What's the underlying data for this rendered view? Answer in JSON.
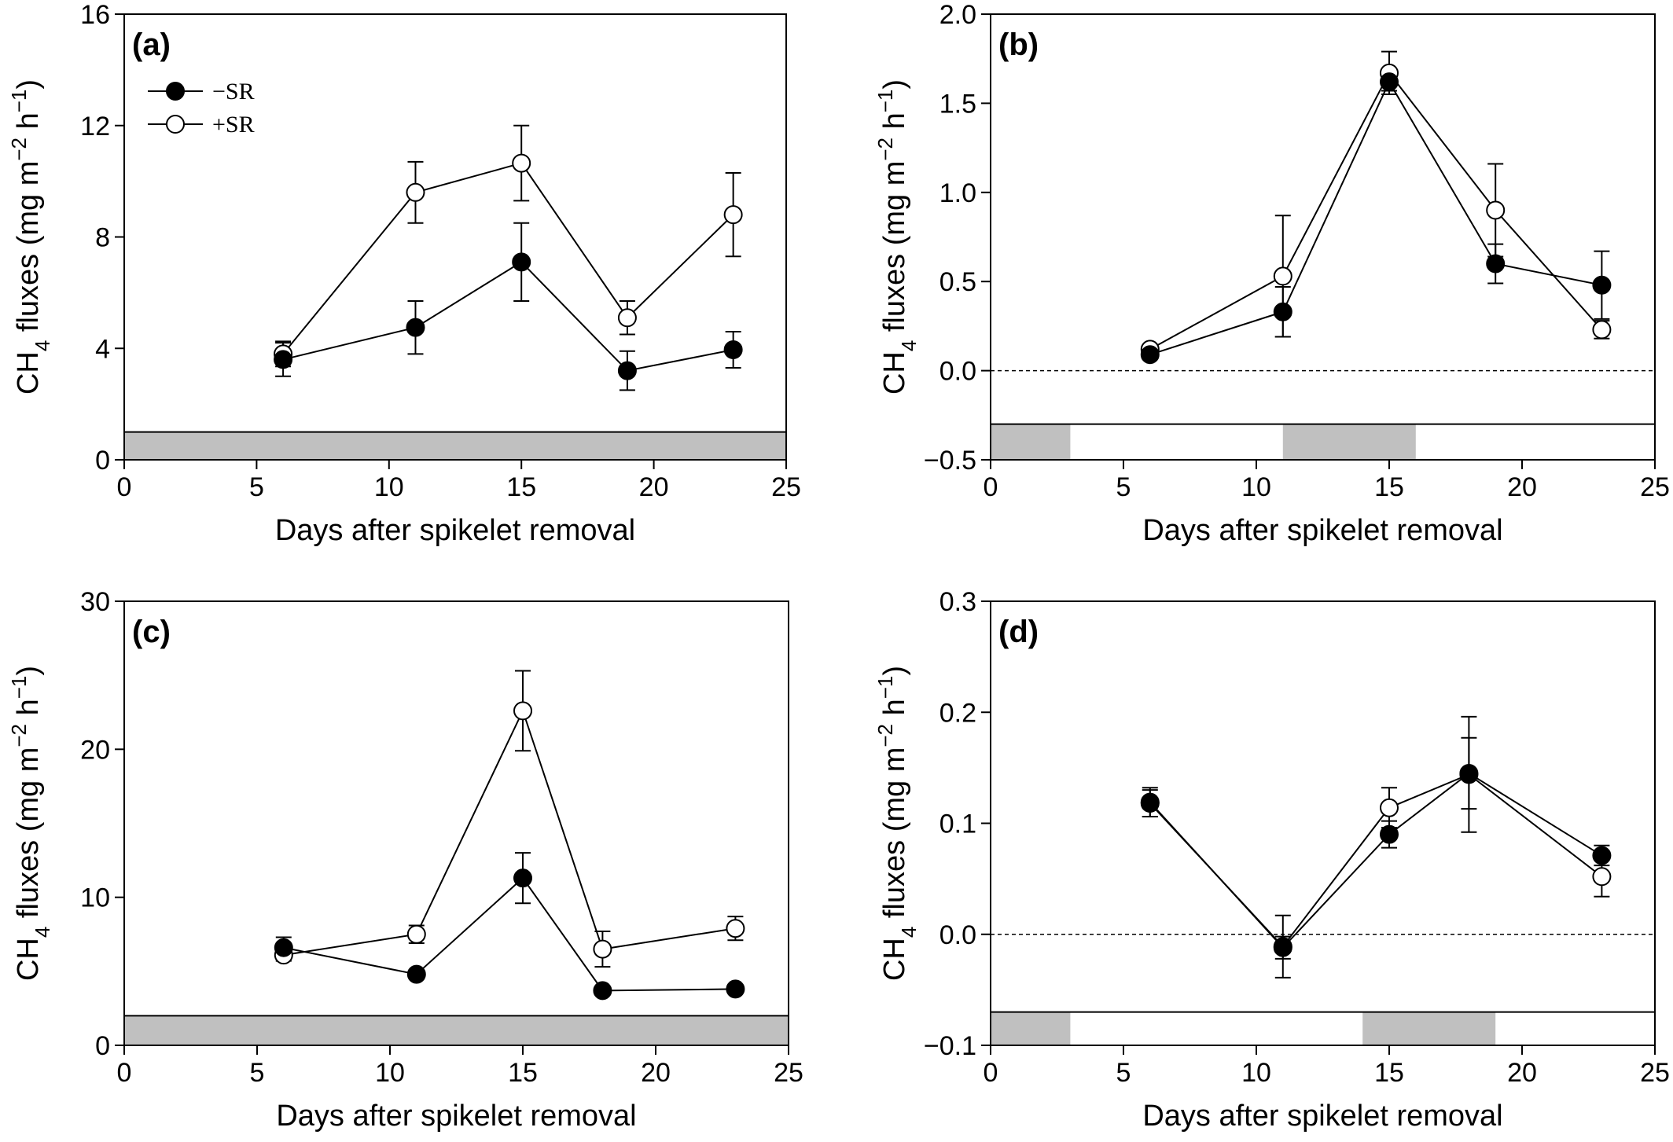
{
  "colors": {
    "shade": "#c0c0c0",
    "filled_marker": "#000000",
    "open_marker": "#ffffff",
    "axis": "#000000"
  },
  "chart_data": [
    {
      "type": "line",
      "panel_label": "(a)",
      "xlabel": "Days after spikelet removal",
      "ylabel": {
        "prefix": "CH",
        "sub": "4",
        "mid": " fluxes (mg m",
        "sup1": "−2",
        "mid2": " h",
        "sup2": "−1",
        "suffix": ")"
      },
      "xlim": [
        0,
        25
      ],
      "ylim": [
        0,
        16
      ],
      "xticks": [
        0,
        5,
        10,
        15,
        20,
        25
      ],
      "yticks": [
        0,
        4,
        8,
        12,
        16
      ],
      "ytick_labels": [
        "0",
        "4",
        "8",
        "12",
        "16"
      ],
      "zero_line": false,
      "bottom_band": {
        "y_from": 0,
        "y_to": 1.0,
        "shaded": [
          [
            0,
            25
          ]
        ]
      },
      "legend": {
        "position": "top-left",
        "entries": [
          {
            "label": "−SR",
            "marker": "filled"
          },
          {
            "label": "+SR",
            "marker": "open"
          }
        ]
      },
      "series": [
        {
          "marker": "filled",
          "x": [
            6,
            11,
            15,
            19,
            23
          ],
          "y": [
            3.6,
            4.75,
            7.1,
            3.2,
            3.95
          ],
          "err": [
            0.6,
            0.95,
            1.4,
            0.7,
            0.65
          ]
        },
        {
          "marker": "open",
          "x": [
            6,
            11,
            15,
            19,
            23
          ],
          "y": [
            3.8,
            9.6,
            10.65,
            5.1,
            8.8
          ],
          "err": [
            0.45,
            1.1,
            1.35,
            0.6,
            1.5
          ]
        }
      ]
    },
    {
      "type": "line",
      "panel_label": "(b)",
      "xlabel": "Days after spikelet removal",
      "ylabel": {
        "prefix": "CH",
        "sub": "4",
        "mid": " fluxes (mg m",
        "sup1": "−2",
        "mid2": " h",
        "sup2": "−1",
        "suffix": ")"
      },
      "xlim": [
        0,
        25
      ],
      "ylim": [
        -0.5,
        2.0
      ],
      "xticks": [
        0,
        5,
        10,
        15,
        20,
        25
      ],
      "yticks": [
        -0.5,
        0,
        0.5,
        1.0,
        1.5,
        2.0
      ],
      "ytick_labels": [
        "−0.5",
        "0.0",
        "0.5",
        "1.0",
        "1.5",
        "2.0"
      ],
      "zero_line": true,
      "bottom_band": {
        "y_from": -0.5,
        "y_to": -0.3,
        "shaded": [
          [
            0,
            3
          ],
          [
            11,
            16
          ]
        ]
      },
      "series": [
        {
          "marker": "filled",
          "x": [
            6,
            11,
            15,
            19,
            23
          ],
          "y": [
            0.09,
            0.33,
            1.62,
            0.6,
            0.48
          ],
          "err": [
            0.02,
            0.14,
            0.05,
            0.11,
            0.19
          ]
        },
        {
          "marker": "open",
          "x": [
            6,
            11,
            15,
            19,
            23
          ],
          "y": [
            0.12,
            0.53,
            1.67,
            0.9,
            0.23
          ],
          "err": [
            0.02,
            0.34,
            0.12,
            0.26,
            0.05
          ]
        }
      ]
    },
    {
      "type": "line",
      "panel_label": "(c)",
      "xlabel": "Days after spikelet removal",
      "ylabel": {
        "prefix": "CH",
        "sub": "4",
        "mid": " fluxes (mg m",
        "sup1": "−2",
        "mid2": " h",
        "sup2": "−1",
        "suffix": ")"
      },
      "xlim": [
        0,
        25
      ],
      "ylim": [
        0,
        30
      ],
      "xticks": [
        0,
        5,
        10,
        15,
        20,
        25
      ],
      "yticks": [
        0,
        10,
        20,
        30
      ],
      "ytick_labels": [
        "0",
        "10",
        "20",
        "30"
      ],
      "zero_line": false,
      "bottom_band": {
        "y_from": 0,
        "y_to": 2.0,
        "shaded": [
          [
            0,
            25
          ]
        ]
      },
      "series": [
        {
          "marker": "filled",
          "x": [
            6,
            11,
            15,
            18,
            23
          ],
          "y": [
            6.6,
            4.8,
            11.3,
            3.7,
            3.8
          ],
          "err": [
            0.7,
            0.2,
            1.7,
            0.2,
            0.2
          ]
        },
        {
          "marker": "open",
          "x": [
            6,
            11,
            15,
            18,
            23
          ],
          "y": [
            6.1,
            7.5,
            22.6,
            6.5,
            7.9
          ],
          "err": [
            0.4,
            0.6,
            2.7,
            1.2,
            0.8
          ]
        }
      ]
    },
    {
      "type": "line",
      "panel_label": "(d)",
      "xlabel": "Days after spikelet removal",
      "ylabel": {
        "prefix": "CH",
        "sub": "4",
        "mid": " fluxes (mg m",
        "sup1": "−2",
        "mid2": " h",
        "sup2": "−1",
        "suffix": ")"
      },
      "xlim": [
        0,
        25
      ],
      "ylim": [
        -0.1,
        0.3
      ],
      "xticks": [
        0,
        5,
        10,
        15,
        20,
        25
      ],
      "yticks": [
        -0.1,
        0,
        0.1,
        0.2,
        0.3
      ],
      "ytick_labels": [
        "−0.1",
        "0.0",
        "0.1",
        "0.2",
        "0.3"
      ],
      "zero_line": true,
      "bottom_band": {
        "y_from": -0.1,
        "y_to": -0.07,
        "shaded": [
          [
            0,
            3
          ],
          [
            14,
            19
          ]
        ]
      },
      "series": [
        {
          "marker": "filled",
          "x": [
            6,
            11,
            15,
            18,
            23
          ],
          "y": [
            0.119,
            -0.012,
            0.09,
            0.145,
            0.071
          ],
          "err": [
            0.013,
            0.01,
            0.012,
            0.032,
            0.009
          ]
        },
        {
          "marker": "open",
          "x": [
            6,
            11,
            15,
            18,
            23
          ],
          "y": [
            0.118,
            -0.011,
            0.114,
            0.144,
            0.052
          ],
          "err": [
            0.012,
            0.028,
            0.018,
            0.052,
            0.018
          ]
        }
      ]
    }
  ]
}
